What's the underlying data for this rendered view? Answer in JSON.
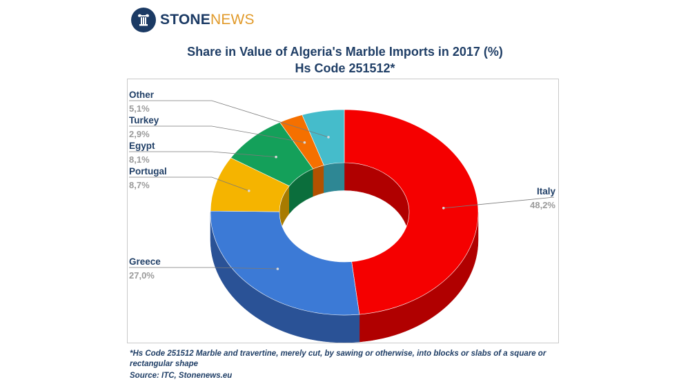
{
  "logo": {
    "part1": "STONE",
    "part2": "NEWS",
    "icon": "column-pillar-icon",
    "colors": {
      "circle": "#1b3a64",
      "part1": "#1b3a64",
      "part2": "#e19a2a"
    }
  },
  "chart_data": {
    "type": "pie",
    "donut": true,
    "three_d": true,
    "title": "Share in Value of Algeria's Marble Imports in 2017 (%)",
    "subtitle": "Hs Code 251512*",
    "unit": "%",
    "start_at_top": true,
    "direction": "clockwise",
    "series": [
      {
        "name": "Italy",
        "value": 48.2,
        "label": "48,2%",
        "color": "#f50000",
        "side": "#b00000"
      },
      {
        "name": "Greece",
        "value": 27.0,
        "label": "27,0%",
        "color": "#3c7ad6",
        "side": "#2a5296"
      },
      {
        "name": "Portugal",
        "value": 8.7,
        "label": "8,7%",
        "color": "#f5b400",
        "side": "#a87b00"
      },
      {
        "name": "Egypt",
        "value": 8.1,
        "label": "8,1%",
        "color": "#14a05a",
        "side": "#0b6e3c"
      },
      {
        "name": "Turkey",
        "value": 2.9,
        "label": "2,9%",
        "color": "#f57000",
        "side": "#b35100"
      },
      {
        "name": "Other",
        "value": 5.1,
        "label": "5,1%",
        "color": "#45bccb",
        "side": "#2e8794"
      }
    ],
    "label_colors": {
      "name": "#1f3e66",
      "value": "#9a9a9a",
      "leader": "#7a7a7a"
    }
  },
  "footnote": {
    "text": "*Hs Code 251512 Marble and travertine, merely cut, by sawing or otherwise, into blocks or slabs of a square or rectangular shape",
    "source": "Source: ITC, Stonenews.eu"
  }
}
